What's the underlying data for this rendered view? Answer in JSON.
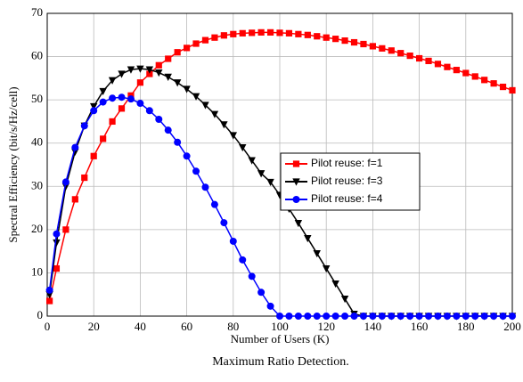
{
  "chart_data": {
    "type": "line",
    "caption": "Maximum Ratio Detection.",
    "xlabel": "Number of Users (K)",
    "ylabel": "Spectral Efficiency (bit/s/Hz/cell)",
    "x": [
      1,
      4,
      8,
      12,
      16,
      20,
      24,
      28,
      32,
      36,
      40,
      44,
      48,
      52,
      56,
      60,
      64,
      68,
      72,
      76,
      80,
      84,
      88,
      92,
      96,
      100,
      104,
      108,
      112,
      116,
      120,
      124,
      128,
      132,
      136,
      140,
      144,
      148,
      152,
      156,
      160,
      164,
      168,
      172,
      176,
      180,
      184,
      188,
      192,
      196,
      200
    ],
    "series": [
      {
        "name": "Pilot reuse: f=1",
        "color": "#ff0000",
        "marker": "square",
        "values": [
          3.5,
          11,
          20,
          27,
          32,
          37,
          41,
          45,
          48,
          51,
          54,
          56,
          58,
          59.5,
          61,
          62,
          63,
          63.8,
          64.4,
          64.9,
          65.2,
          65.4,
          65.5,
          65.6,
          65.6,
          65.5,
          65.4,
          65.2,
          65,
          64.7,
          64.4,
          64.1,
          63.7,
          63.3,
          62.9,
          62.4,
          61.9,
          61.4,
          60.8,
          60.2,
          59.6,
          59,
          58.3,
          57.6,
          56.9,
          56.2,
          55.4,
          54.6,
          53.8,
          53,
          52.2
        ]
      },
      {
        "name": "Pilot reuse: f=3",
        "color": "#000000",
        "marker": "triangle-down",
        "values": [
          5,
          17,
          30,
          38,
          44,
          48.5,
          52,
          54.5,
          56,
          57,
          57.2,
          57,
          56.3,
          55.3,
          54,
          52.5,
          50.8,
          48.8,
          46.7,
          44.3,
          41.8,
          39,
          36,
          33,
          31,
          28,
          24.8,
          21.5,
          18,
          14.5,
          11,
          7.5,
          4,
          0.5,
          0,
          0,
          0,
          0,
          0,
          0,
          0,
          0,
          0,
          0,
          0,
          0,
          0,
          0,
          0,
          0,
          0
        ]
      },
      {
        "name": "Pilot reuse: f=4",
        "color": "#0000ff",
        "marker": "circle",
        "values": [
          6,
          19,
          31,
          39,
          44,
          47.5,
          49.5,
          50.4,
          50.6,
          50.2,
          49.2,
          47.5,
          45.5,
          43,
          40.2,
          37,
          33.5,
          29.8,
          25.8,
          21.6,
          17.3,
          13,
          9.2,
          5.5,
          2.3,
          0,
          0,
          0,
          0,
          0,
          0,
          0,
          0,
          0,
          0,
          0,
          0,
          0,
          0,
          0,
          0,
          0,
          0,
          0,
          0,
          0,
          0,
          0,
          0,
          0,
          0
        ]
      }
    ],
    "xlim": [
      0,
      200
    ],
    "xticks": [
      0,
      20,
      40,
      60,
      80,
      100,
      120,
      140,
      160,
      180,
      200
    ],
    "ylim": [
      0,
      70
    ],
    "yticks": [
      0,
      10,
      20,
      30,
      40,
      50,
      60,
      70
    ],
    "grid": true,
    "legend": "right"
  }
}
